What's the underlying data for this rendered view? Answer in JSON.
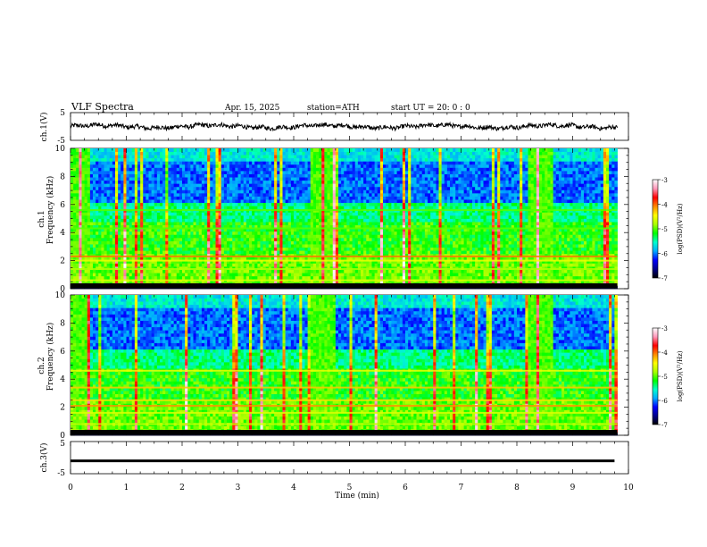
{
  "header": {
    "title": "VLF  Spectra",
    "date": "Apr. 15, 2025",
    "station": "station=ATH",
    "start_ut": "start  UT  =    20: 0   : 0"
  },
  "chart_data": [
    {
      "type": "line",
      "panel": "ch1-waveform",
      "ylabel": "ch.1(V)",
      "yticks": [
        "5",
        "-5"
      ],
      "ylim": [
        -5,
        5
      ],
      "xlim": [
        0,
        10
      ],
      "x_end": 9.8,
      "approx_level": 0,
      "color": "#000000"
    },
    {
      "type": "heatmap",
      "panel": "ch1-spectrogram",
      "ylabel": "ch.1",
      "ylabel2": "Frequency (kHz)",
      "yticks": [
        "10",
        "8",
        "6",
        "4",
        "2",
        "0"
      ],
      "ylim": [
        0,
        10
      ],
      "xlim": [
        0,
        10
      ],
      "x_end": 9.8
    },
    {
      "type": "heatmap",
      "panel": "ch2-spectrogram",
      "ylabel": "ch.2",
      "ylabel2": "Frequency (kHz)",
      "yticks": [
        "10",
        "8",
        "6",
        "4",
        "2",
        "0"
      ],
      "ylim": [
        0,
        10
      ],
      "xlim": [
        0,
        10
      ],
      "x_end": 9.8
    },
    {
      "type": "line",
      "panel": "ch3-waveform",
      "ylabel": "ch.3(V)",
      "yticks": [
        "5",
        "-5"
      ],
      "ylim": [
        -5,
        5
      ],
      "xlim": [
        0,
        10
      ],
      "x_end": 9.8,
      "approx_level": -1,
      "color": "#000000",
      "xlabel": "Time  (min)",
      "xticks": [
        "0",
        "1",
        "2",
        "3",
        "4",
        "5",
        "6",
        "7",
        "8",
        "9",
        "10"
      ]
    }
  ],
  "colorbar": {
    "label": "log(PSD)(V²/Hz)",
    "ticks": [
      "-3",
      "-4",
      "-5",
      "-6",
      "-7"
    ],
    "range": [
      -7,
      -3
    ],
    "colors": [
      "#000000",
      "#00008b",
      "#0000ff",
      "#00aaff",
      "#00ffcc",
      "#00ff00",
      "#aaff00",
      "#ffff00",
      "#ff8800",
      "#ff0000",
      "#ff99bb",
      "#ffffff"
    ]
  }
}
